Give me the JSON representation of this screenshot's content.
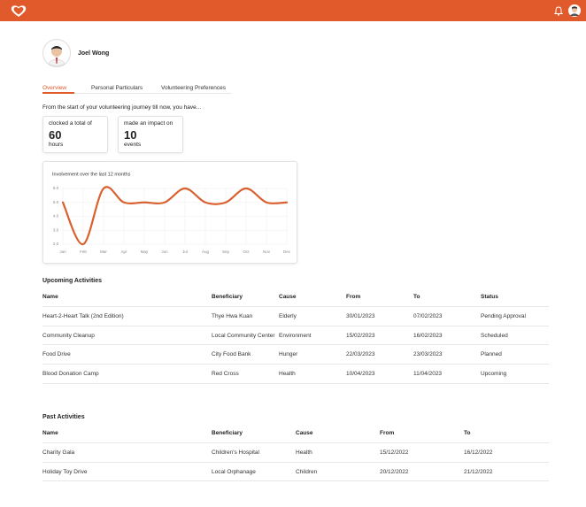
{
  "profile": {
    "name": "Joel Wong"
  },
  "tabs": [
    "Overview",
    "Personal Particulars",
    "Volunteering Preferences"
  ],
  "intro": "From the start of your volunteering journey till now, you have...",
  "stats": [
    {
      "caption": "clocked a total of",
      "value": 60,
      "unit": "hours"
    },
    {
      "caption": "made an impact on",
      "value": 10,
      "unit": "events"
    }
  ],
  "chart_data": {
    "type": "line",
    "title": "Involvement over the last 12 months",
    "categories": [
      "Jan",
      "Feb",
      "Mar",
      "Apr",
      "May",
      "Jun",
      "Jul",
      "Aug",
      "Sep",
      "Oct",
      "Nov",
      "Dec"
    ],
    "values": [
      5,
      2,
      6,
      5,
      5,
      5,
      6,
      5,
      5,
      6,
      5,
      5
    ],
    "color": "#d9602f",
    "ylim": [
      2,
      6
    ],
    "yticks": [
      {
        "value": 2,
        "label": "2.0"
      },
      {
        "value": 3,
        "label": "3.0"
      },
      {
        "value": 4,
        "label": "4.0"
      },
      {
        "value": 5,
        "label": "5.0"
      },
      {
        "value": 6,
        "label": "6.0"
      }
    ],
    "grid": true
  },
  "upcoming": {
    "title": "Upcoming Activities",
    "columns": [
      "Name",
      "Beneficiary",
      "Cause",
      "From",
      "To",
      "Status"
    ],
    "rows": [
      [
        "Heart-2-Heart Talk (2nd Edition)",
        "Thye Hwa Kuan",
        "Elderly",
        "30/01/2023",
        "07/02/2023",
        "Pending Approval"
      ],
      [
        "Community Cleanup",
        "Local Community Center",
        "Environment",
        "15/02/2023",
        "16/02/2023",
        "Scheduled"
      ],
      [
        "Food Drive",
        "City Food Bank",
        "Hunger",
        "22/03/2023",
        "23/03/2023",
        "Planned"
      ],
      [
        "Blood Donation Camp",
        "Red Cross",
        "Health",
        "10/04/2023",
        "11/04/2023",
        "Upcoming"
      ]
    ]
  },
  "past": {
    "title": "Past Activities",
    "columns": [
      "Name",
      "Beneficiary",
      "Cause",
      "From",
      "To"
    ],
    "rows": [
      [
        "Charity Gala",
        "Children's Hospital",
        "Health",
        "15/12/2022",
        "16/12/2022"
      ],
      [
        "Holiday Toy Drive",
        "Local Orphanage",
        "Children",
        "20/12/2022",
        "21/12/2022"
      ]
    ]
  }
}
